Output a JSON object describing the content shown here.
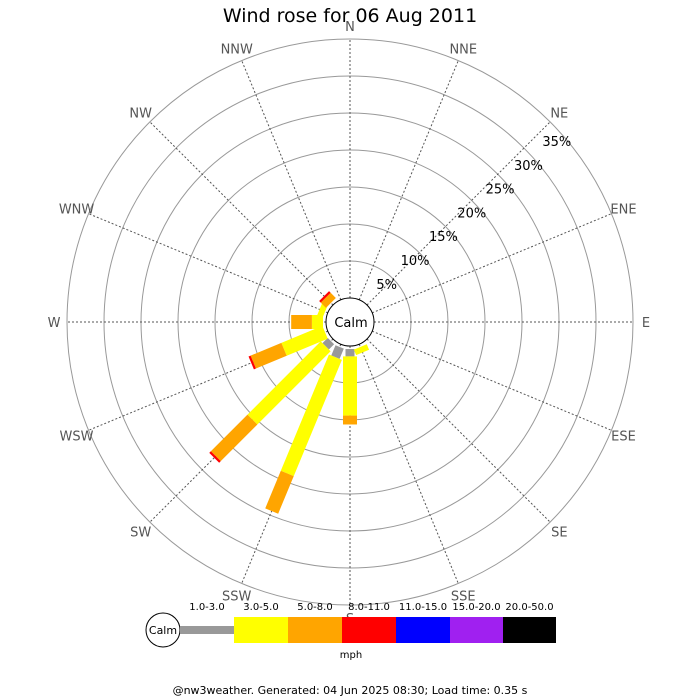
{
  "chart_data": {
    "type": "wind-rose",
    "title": "Wind rose for 06 Aug 2011",
    "center_label": "Calm",
    "directions": [
      "N",
      "NNE",
      "NE",
      "ENE",
      "E",
      "ESE",
      "SE",
      "SSE",
      "S",
      "SSW",
      "SW",
      "WSW",
      "W",
      "WNW",
      "NW",
      "NNW"
    ],
    "rings": [
      "5%",
      "10%",
      "15%",
      "20%",
      "25%",
      "30%",
      "35%"
    ],
    "rlim": [
      0,
      35
    ],
    "speed_bands": [
      {
        "label": "1.0-3.0",
        "color": "#999999"
      },
      {
        "label": "3.0-5.0",
        "color": "#ffff00"
      },
      {
        "label": "5.0-8.0",
        "color": "#ffa500"
      },
      {
        "label": "8.0-11.0",
        "color": "#ff0000"
      },
      {
        "label": "11.0-15.0",
        "color": "#0000ff"
      },
      {
        "label": "15.0-20.0",
        "color": "#a020f0"
      },
      {
        "label": "20.0-50.0",
        "color": "#000000"
      }
    ],
    "unit": "mph",
    "series": [
      {
        "direction": "S",
        "values": [
          1.0,
          8.0,
          1.2,
          0,
          0,
          0,
          0
        ]
      },
      {
        "direction": "SSE",
        "values": [
          0,
          0.8,
          0,
          0,
          0,
          0,
          0
        ]
      },
      {
        "direction": "SSW",
        "values": [
          1.5,
          17.0,
          5.5,
          0,
          0,
          0,
          0
        ]
      },
      {
        "direction": "SW",
        "values": [
          1.0,
          14.0,
          7.0,
          0.3,
          0,
          0,
          0
        ]
      },
      {
        "direction": "WSW",
        "values": [
          0,
          6.0,
          4.5,
          0.3,
          0,
          0,
          0
        ]
      },
      {
        "direction": "W",
        "values": [
          0,
          1.5,
          2.8,
          0,
          0,
          0,
          0
        ]
      },
      {
        "direction": "WNW",
        "values": [
          0,
          0.8,
          0,
          0,
          0,
          0,
          0
        ]
      },
      {
        "direction": "NW",
        "values": [
          0,
          0,
          1.0,
          0.3,
          0,
          0,
          0
        ]
      }
    ]
  },
  "footer": "@nw3weather. Generated: 04 Jun 2025 08:30; Load time: 0.35 s"
}
